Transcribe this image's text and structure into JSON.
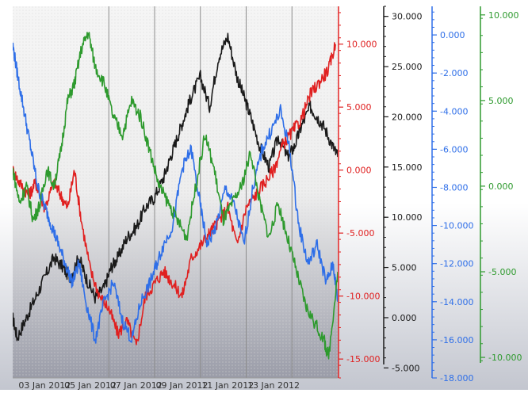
{
  "chart_data": {
    "type": "line",
    "x": {
      "start": "02 Jan 2012",
      "end": "14 Jan 2012",
      "tick_labels": [
        "03 Jan 2012",
        "05 Jan 2012",
        "07 Jan 2012",
        "09 Jan 2012",
        "11 Jan 2012",
        "13 Jan 2012"
      ]
    },
    "axes": [
      {
        "id": "red",
        "color": "#e02020",
        "range": [
          -16.5,
          13.0
        ],
        "ticks": [
          10.0,
          5.0,
          0.0,
          -5.0,
          -10.0,
          -15.0
        ],
        "tick_labels": [
          "10.000",
          "5.000",
          "0.000",
          "-5.000",
          "-10.000",
          "-15.000"
        ]
      },
      {
        "id": "black",
        "color": "#1a1a1a",
        "range": [
          -6.0,
          31.0
        ],
        "ticks": [
          30,
          25,
          20,
          15,
          10,
          5,
          0,
          -5
        ],
        "tick_labels": [
          "30.000",
          "25.000",
          "20.000",
          "15.000",
          "10.000",
          "5.000",
          "0.000",
          "-5.000"
        ]
      },
      {
        "id": "blue",
        "color": "#2f6fe8",
        "range": [
          -18.0,
          1.5
        ],
        "ticks": [
          0,
          -2,
          -4,
          -6,
          -8,
          -10,
          -12,
          -14,
          -16,
          -18
        ],
        "tick_labels": [
          "0.000",
          "-2.000",
          "-4.000",
          "-6.000",
          "-8.000",
          "-10.000",
          "-12.000",
          "-14.000",
          "-16.000",
          "-18.000"
        ]
      },
      {
        "id": "green",
        "color": "#2e9a2e",
        "range": [
          -11.2,
          10.5
        ],
        "ticks": [
          10,
          5,
          0,
          -5,
          -10
        ],
        "tick_labels": [
          "10.000",
          "5.000",
          "0.000",
          "-5.000",
          "-10.000"
        ]
      }
    ],
    "series": [
      {
        "id": "black",
        "color": "#1a1a1a",
        "axis": "black",
        "x_days": [
          0.0,
          0.2,
          0.6,
          1.0,
          1.4,
          1.8,
          2.2,
          2.5,
          2.9,
          3.2,
          3.6,
          4.0,
          4.3,
          4.6,
          5.0,
          5.4,
          5.8,
          6.2,
          6.6,
          6.9,
          7.2,
          7.5,
          7.8,
          8.2,
          8.6,
          9.0,
          9.4,
          9.8,
          10.1,
          10.4,
          10.8,
          11.2,
          11.6,
          12.0,
          12.3,
          12.6,
          13.0,
          13.3,
          13.6,
          14.0,
          14.2
        ],
        "values": [
          0,
          -2,
          0,
          2,
          4,
          6,
          5,
          4,
          6,
          4,
          2,
          3,
          5,
          6,
          8,
          9,
          11,
          12,
          14,
          16,
          18,
          20,
          22,
          24,
          21,
          26,
          28,
          24,
          22,
          20,
          17,
          15,
          18,
          16,
          17,
          19,
          21,
          20,
          19,
          17,
          16
        ]
      },
      {
        "id": "red",
        "color": "#e02020",
        "axis": "red",
        "x_days": [
          0.0,
          0.3,
          0.7,
          1.0,
          1.4,
          1.8,
          2.1,
          2.4,
          2.7,
          3.0,
          3.4,
          3.8,
          4.2,
          4.6,
          5.0,
          5.4,
          5.8,
          6.2,
          6.6,
          7.0,
          7.4,
          7.8,
          8.2,
          8.6,
          9.0,
          9.4,
          9.8,
          10.2,
          10.6,
          11.0,
          11.4,
          11.8,
          12.2,
          12.6,
          13.0,
          13.4,
          13.8,
          14.1
        ],
        "values": [
          0,
          -1,
          -2,
          -1,
          -3,
          -1,
          -2,
          -3,
          0,
          -4,
          -8,
          -10,
          -11,
          -13,
          -12,
          -14,
          -10,
          -9,
          -8,
          -9,
          -10,
          -7,
          -6,
          -5,
          -4,
          -3,
          -6,
          -3,
          -2,
          -1,
          0,
          2,
          3,
          4,
          6,
          7,
          8,
          10
        ]
      },
      {
        "id": "blue",
        "color": "#2f6fe8",
        "axis": "blue",
        "x_days": [
          0.0,
          0.2,
          0.5,
          0.8,
          1.1,
          1.4,
          1.7,
          2.0,
          2.3,
          2.6,
          2.9,
          3.2,
          3.6,
          4.0,
          4.4,
          4.8,
          5.2,
          5.6,
          6.0,
          6.3,
          6.6,
          7.0,
          7.4,
          7.8,
          8.2,
          8.5,
          8.9,
          9.3,
          9.7,
          10.1,
          10.5,
          10.9,
          11.3,
          11.7,
          12.1,
          12.5,
          12.9,
          13.3,
          13.7,
          14.0,
          14.2
        ],
        "values": [
          -0.5,
          -2,
          -4,
          -6,
          -8,
          -9,
          -10,
          -11,
          -12,
          -13,
          -12,
          -14,
          -16,
          -14,
          -13,
          -15,
          -16,
          -14,
          -13,
          -12,
          -11,
          -10,
          -7,
          -6,
          -9,
          -11,
          -10,
          -8,
          -9,
          -11,
          -8,
          -6,
          -5,
          -4,
          -6,
          -10,
          -12,
          -11,
          -13,
          -12,
          -14
        ]
      },
      {
        "id": "green",
        "color": "#2e9a2e",
        "axis": "green",
        "x_days": [
          0.0,
          0.3,
          0.6,
          0.9,
          1.2,
          1.5,
          1.8,
          2.1,
          2.4,
          2.7,
          3.0,
          3.3,
          3.6,
          4.0,
          4.4,
          4.8,
          5.2,
          5.6,
          6.0,
          6.4,
          6.8,
          7.2,
          7.6,
          8.0,
          8.4,
          8.8,
          9.2,
          9.6,
          10.0,
          10.4,
          10.8,
          11.2,
          11.6,
          12.0,
          12.4,
          12.8,
          13.2,
          13.6,
          13.8,
          14.2
        ],
        "values": [
          1,
          -1,
          0,
          -2,
          -1,
          1,
          0,
          2,
          5,
          6,
          8,
          9,
          7,
          6,
          4,
          3,
          5,
          4,
          2,
          0,
          -1,
          -2,
          -3,
          0,
          3,
          1,
          -2,
          -1,
          0,
          2,
          -1,
          -3,
          -1,
          -3,
          -5,
          -7,
          -8,
          -9,
          -10,
          -5
        ]
      }
    ]
  }
}
